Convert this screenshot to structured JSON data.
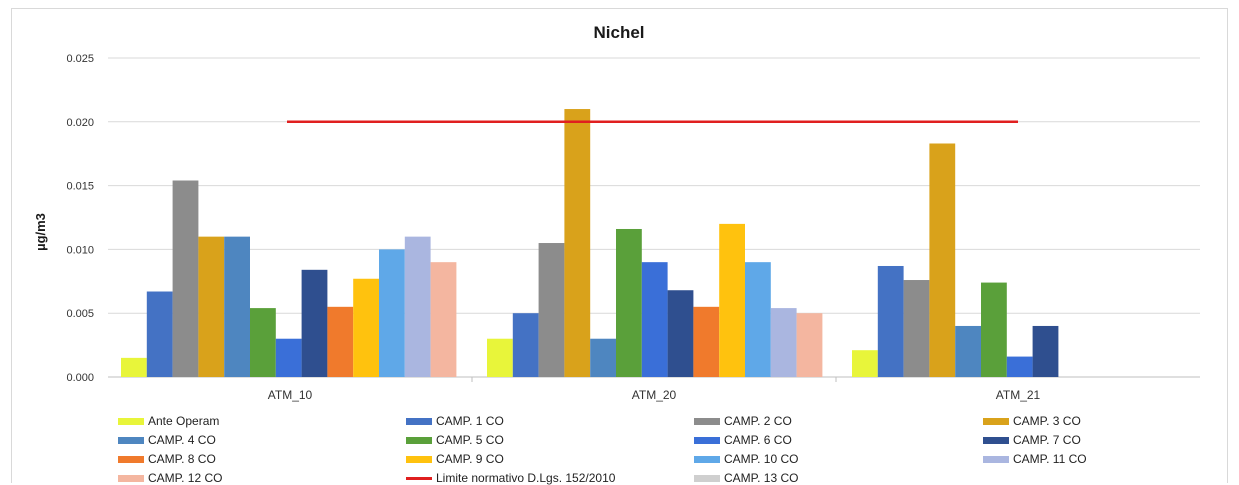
{
  "chart_data": {
    "type": "bar",
    "title": "Nichel",
    "ylabel": "µg/m3",
    "xlabel": "",
    "ylim": [
      0,
      0.025
    ],
    "yticks": [
      "0.000",
      "0.005",
      "0.010",
      "0.015",
      "0.020",
      "0.025"
    ],
    "categories": [
      "ATM_10",
      "ATM_20",
      "ATM_21"
    ],
    "series": [
      {
        "name": "Ante Operam",
        "color": "#e8f53a",
        "values": [
          0.0015,
          0.003,
          0.0021
        ]
      },
      {
        "name": "CAMP. 1 CO",
        "color": "#4472c4",
        "values": [
          0.0067,
          0.005,
          0.0087
        ]
      },
      {
        "name": "CAMP. 2 CO",
        "color": "#8c8c8c",
        "values": [
          0.0154,
          0.0105,
          0.0076
        ]
      },
      {
        "name": "CAMP. 3 CO",
        "color": "#d9a21b",
        "values": [
          0.011,
          0.021,
          0.0183
        ]
      },
      {
        "name": "CAMP. 4 CO",
        "color": "#4e86c0",
        "values": [
          0.011,
          0.003,
          0.004
        ]
      },
      {
        "name": "CAMP. 5 CO",
        "color": "#5aa03a",
        "values": [
          0.0054,
          0.0116,
          0.0074
        ]
      },
      {
        "name": "CAMP. 6 CO",
        "color": "#3a6fd8",
        "values": [
          0.003,
          0.009,
          0.0016
        ]
      },
      {
        "name": "CAMP. 7 CO",
        "color": "#2f4f8f",
        "values": [
          0.0084,
          0.0068,
          0.004
        ]
      },
      {
        "name": "CAMP. 8 CO",
        "color": "#f07a2c",
        "values": [
          0.0055,
          0.0055,
          null
        ]
      },
      {
        "name": "CAMP. 9 CO",
        "color": "#ffc20e",
        "values": [
          0.0077,
          0.012,
          null
        ]
      },
      {
        "name": "CAMP. 10 CO",
        "color": "#5fa8e8",
        "values": [
          0.01,
          0.009,
          null
        ]
      },
      {
        "name": "CAMP. 11 CO",
        "color": "#aab6e0",
        "values": [
          0.011,
          0.0054,
          null
        ]
      },
      {
        "name": "CAMP. 12 CO",
        "color": "#f4b6a0",
        "values": [
          0.009,
          0.005,
          null
        ]
      },
      {
        "name": "CAMP. 13 CO",
        "color": "#cfcfcf",
        "values": [
          null,
          null,
          null
        ]
      }
    ],
    "limit": {
      "name": "Limite normativo D.Lgs. 152/2010",
      "value": 0.02,
      "color": "#e01f1f"
    },
    "legend": {
      "position": "bottom",
      "order": [
        "Ante Operam",
        "CAMP. 1 CO",
        "CAMP. 2 CO",
        "CAMP. 3 CO",
        "CAMP. 4 CO",
        "CAMP. 5 CO",
        "CAMP. 6 CO",
        "CAMP. 7 CO",
        "CAMP. 8 CO",
        "CAMP. 9 CO",
        "CAMP. 10 CO",
        "CAMP. 11 CO",
        "CAMP. 12 CO",
        "Limite normativo D.Lgs. 152/2010",
        "CAMP. 13 CO"
      ]
    },
    "grid": true
  }
}
